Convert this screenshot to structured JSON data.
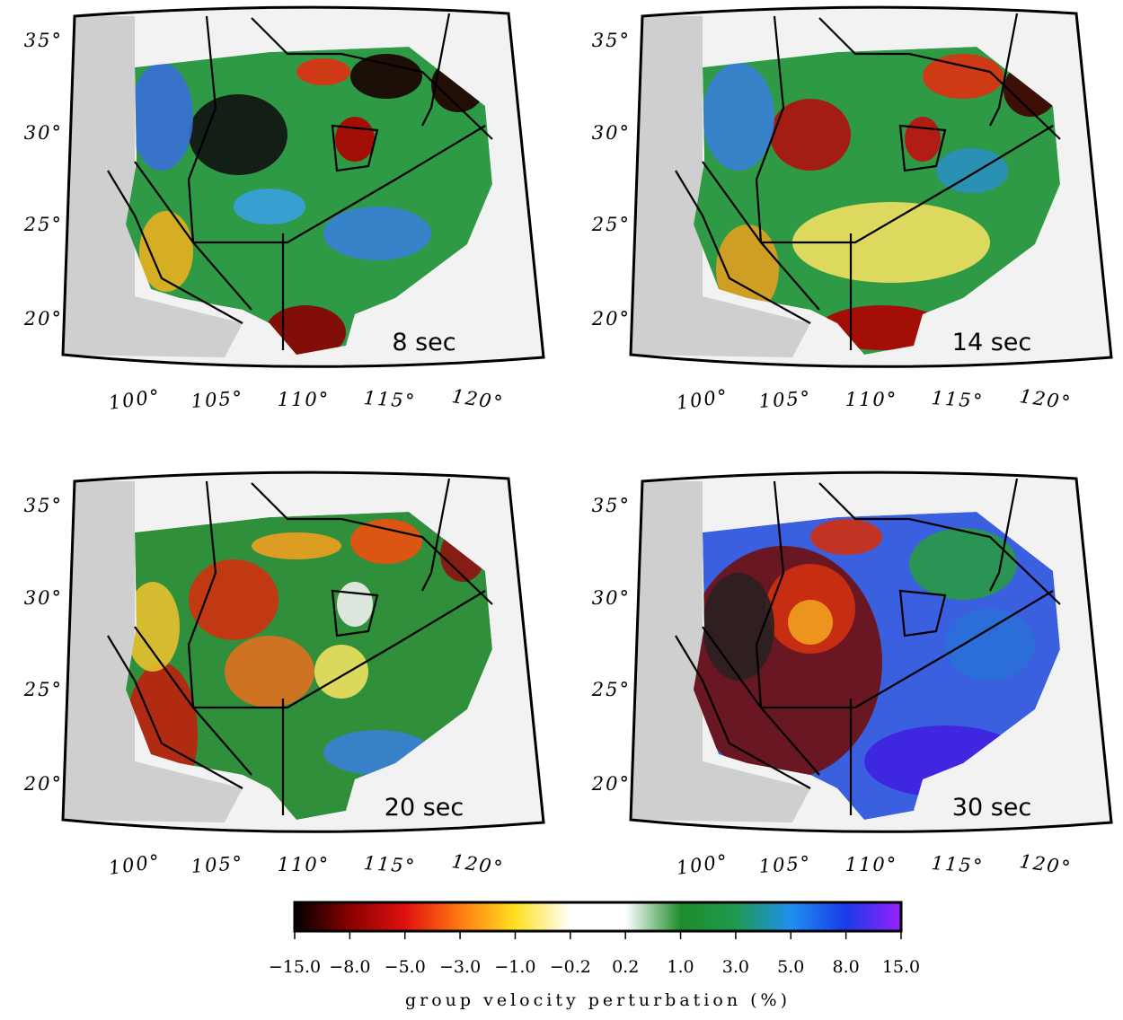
{
  "panels": [
    {
      "label": "8 sec"
    },
    {
      "label": "14 sec"
    },
    {
      "label": "20 sec"
    },
    {
      "label": "30 sec"
    }
  ],
  "lat_labels": [
    "20°",
    "25°",
    "30°",
    "35°"
  ],
  "lon_labels": [
    "100°",
    "105°",
    "110°",
    "115°",
    "120°"
  ],
  "colorbar": {
    "ticks": [
      "−15.0",
      "−8.0",
      "−5.0",
      "−3.0",
      "−1.0",
      "−0.2",
      "0.2",
      "1.0",
      "3.0",
      "5.0",
      "8.0",
      "15.0"
    ],
    "label": "group velocity perturbation (%)"
  }
}
